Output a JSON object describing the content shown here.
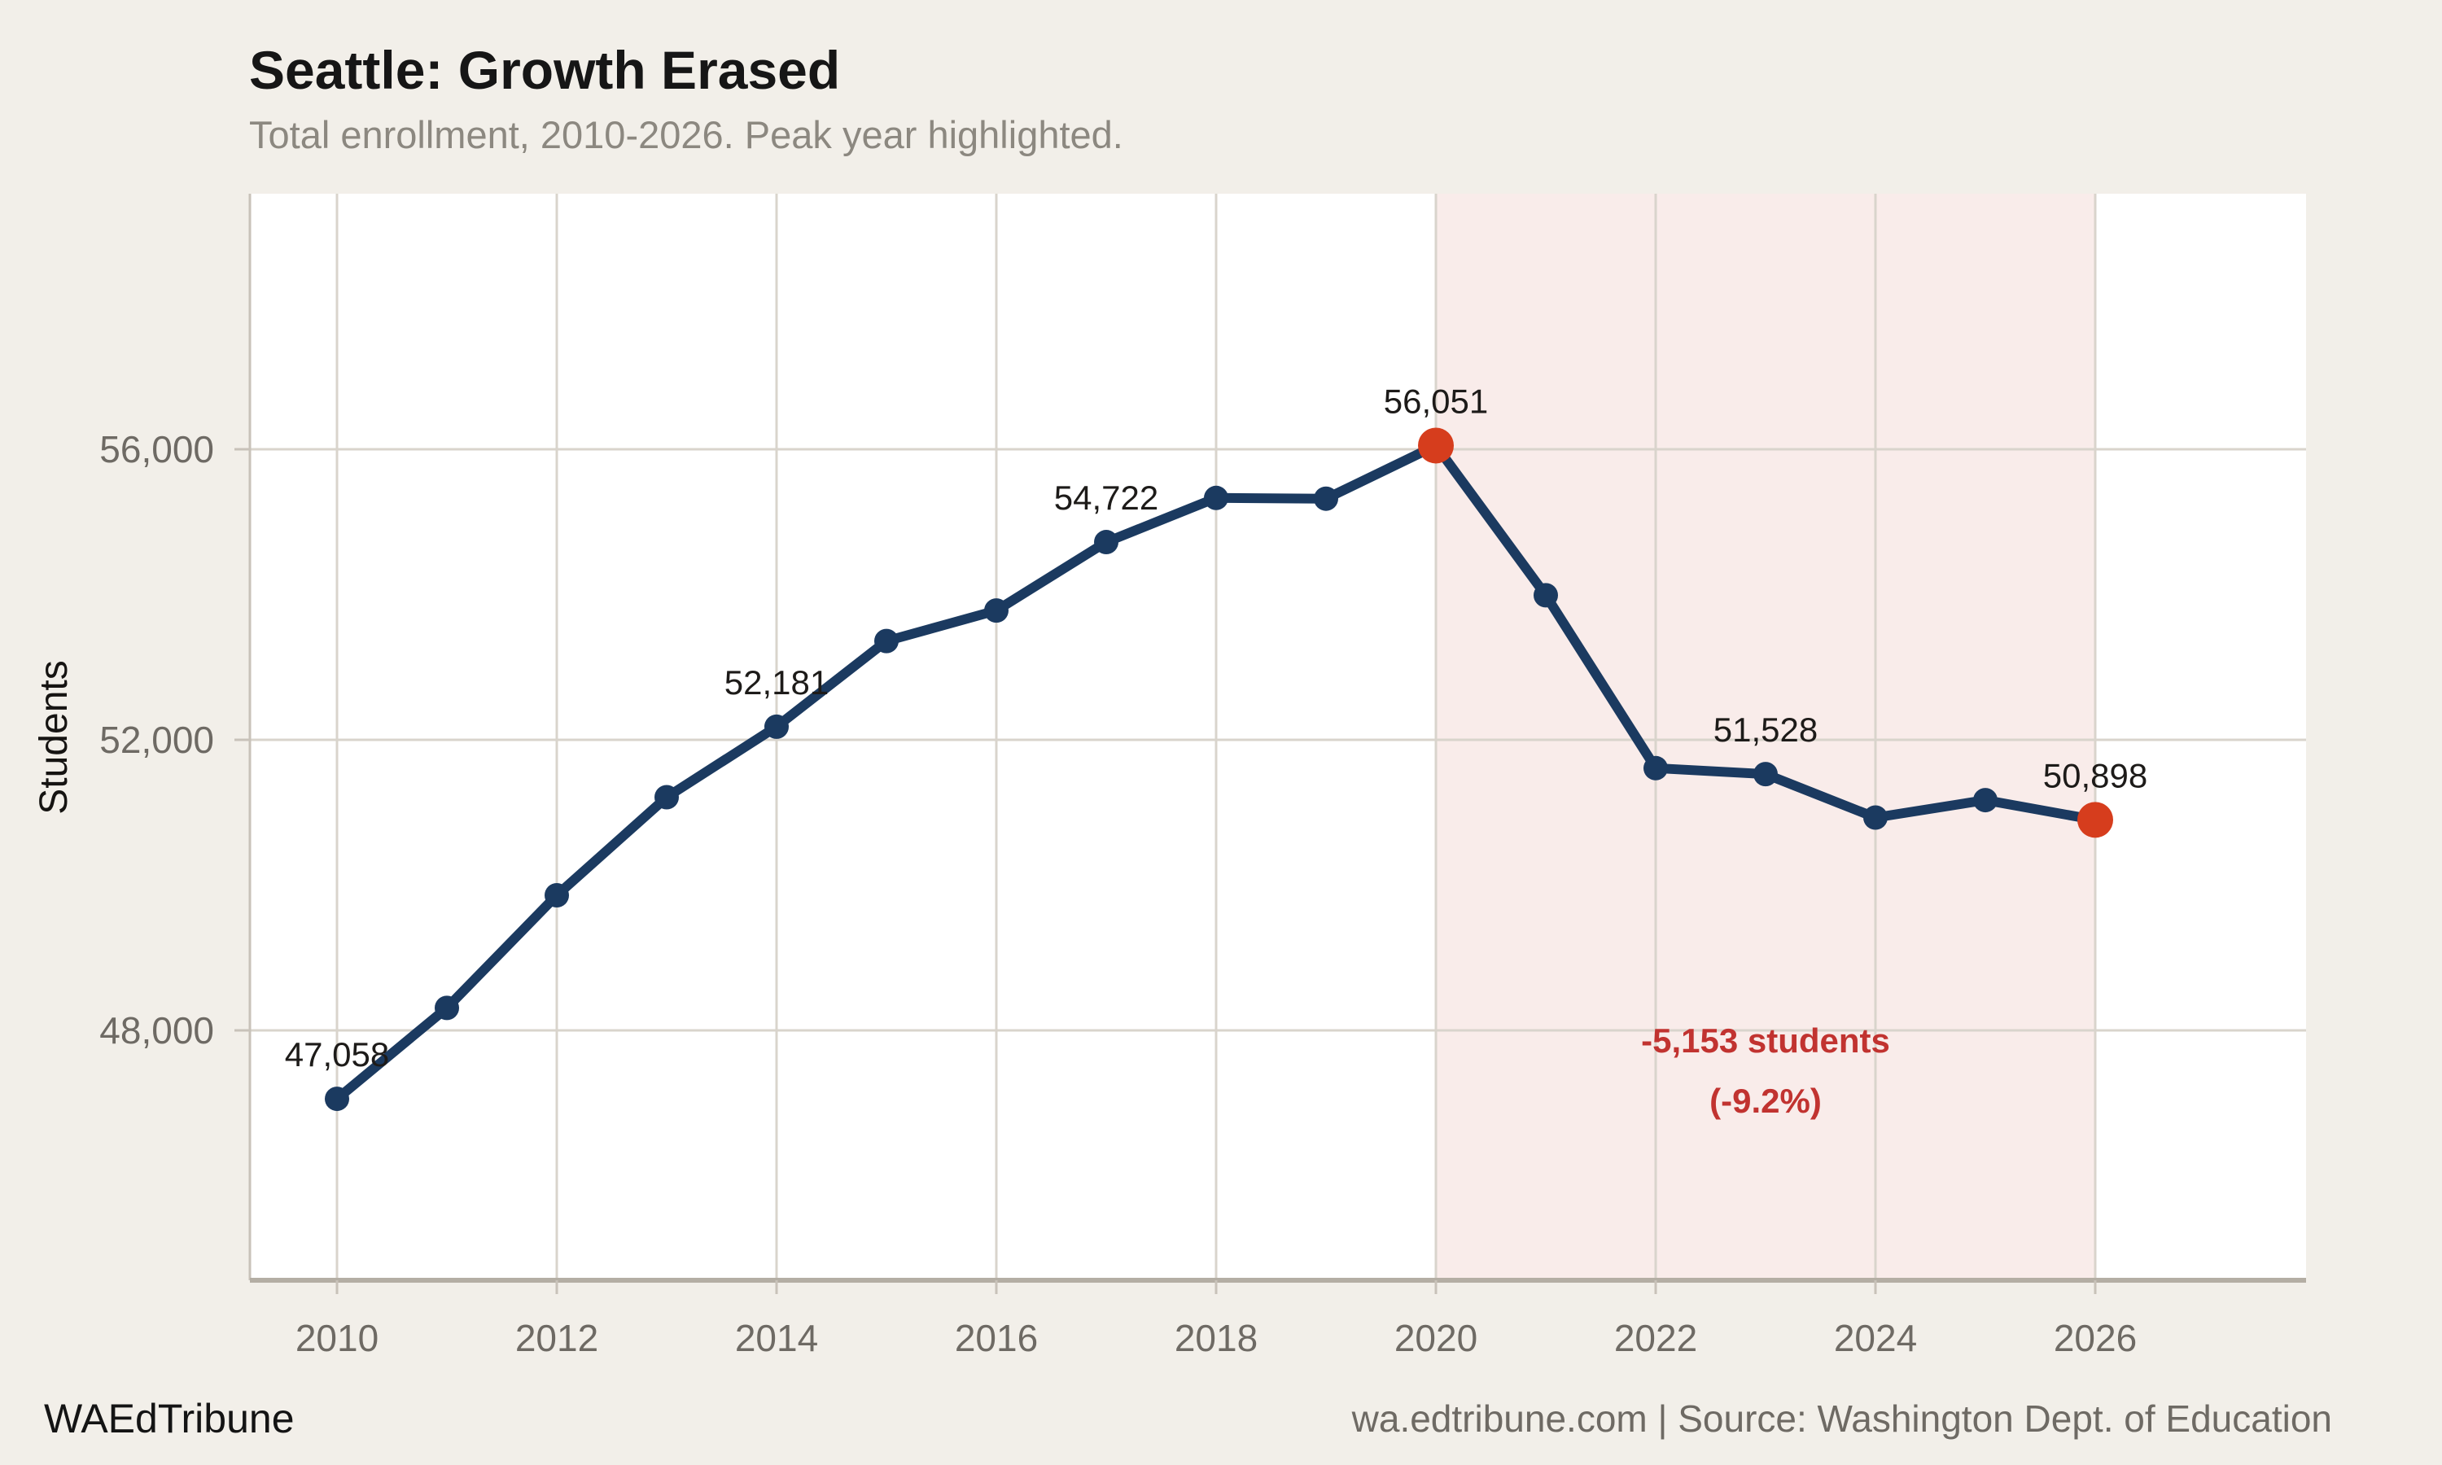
{
  "page": {
    "background": "#f2efe9"
  },
  "footer": {
    "brand": "WAEdTribune",
    "source": "wa.edtribune.com | Source: Washington Dept. of Education"
  },
  "chart_data": {
    "type": "line",
    "title": "Seattle: Growth Erased",
    "subtitle": "Total enrollment, 2010-2026. Peak year highlighted.",
    "xlabel": "",
    "ylabel": "Students",
    "x": [
      2010,
      2011,
      2012,
      2013,
      2014,
      2015,
      2016,
      2017,
      2018,
      2019,
      2020,
      2021,
      2022,
      2023,
      2024,
      2025,
      2026
    ],
    "values": [
      47058,
      48310,
      49860,
      51210,
      52181,
      53360,
      53780,
      54722,
      55330,
      55320,
      56051,
      53990,
      51610,
      51528,
      50930,
      51170,
      50898
    ],
    "point_labels": {
      "2010": "47,058",
      "2014": "52,181",
      "2017": "54,722",
      "2020": "56,051",
      "2023": "51,528",
      "2026": "50,898"
    },
    "highlight_years": [
      2020,
      2026
    ],
    "peak_year": 2020,
    "shaded_region": {
      "from_year": 2020,
      "to_year": 2026
    },
    "annotation": {
      "lines": [
        "-5,153 students",
        "(-9.2%)"
      ],
      "anchor_year": 2023
    },
    "x_ticks": [
      {
        "v": 2010,
        "label": "2010"
      },
      {
        "v": 2012,
        "label": "2012"
      },
      {
        "v": 2014,
        "label": "2014"
      },
      {
        "v": 2016,
        "label": "2016"
      },
      {
        "v": 2018,
        "label": "2018"
      },
      {
        "v": 2020,
        "label": "2020"
      },
      {
        "v": 2022,
        "label": "2022"
      },
      {
        "v": 2024,
        "label": "2024"
      },
      {
        "v": 2026,
        "label": "2026"
      }
    ],
    "y_ticks": [
      {
        "v": 48000,
        "label": "48,000"
      },
      {
        "v": 52000,
        "label": "52,000"
      },
      {
        "v": 56000,
        "label": "56,000"
      }
    ],
    "xlim": [
      2009.2,
      2027.9
    ],
    "ylim": [
      44560,
      59520
    ],
    "grid": true,
    "legend": "none",
    "colors": {
      "line": "#1b3a60",
      "highlight": "#d63d1d",
      "band": "#f9ecea",
      "plot_bg": "#ffffff",
      "grid": "#d9d4cc",
      "spine": "#c8c2b9",
      "axis_line": "#b4aea4",
      "tick_text": "#6e6a64",
      "data_label": "#1d1b19",
      "annotation": "#c13330",
      "ylabel_text": "#161412"
    }
  }
}
